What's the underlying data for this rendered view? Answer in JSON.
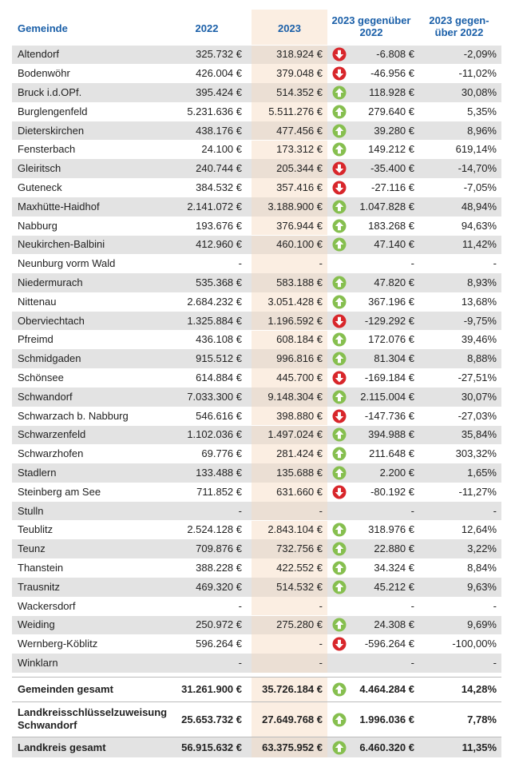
{
  "header": [
    "Gemeinde",
    "2022",
    "2023",
    "2023 gegenüber\n2022",
    "2023 gegen-\nüber 2022"
  ],
  "rows": [
    [
      "Altendorf",
      "325.732 €",
      "318.924 €",
      "-6.808 €",
      "-2,09%"
    ],
    [
      "Bodenwöhr",
      "426.004 €",
      "379.048 €",
      "-46.956 €",
      "-11,02%"
    ],
    [
      "Bruck i.d.OPf.",
      "395.424 €",
      "514.352 €",
      "118.928 €",
      "30,08%"
    ],
    [
      "Burglengenfeld",
      "5.231.636 €",
      "5.511.276 €",
      "279.640 €",
      "5,35%"
    ],
    [
      "Dieterskirchen",
      "438.176 €",
      "477.456 €",
      "39.280 €",
      "8,96%"
    ],
    [
      "Fensterbach",
      "24.100 €",
      "173.312 €",
      "149.212 €",
      "619,14%"
    ],
    [
      "Gleiritsch",
      "240.744 €",
      "205.344 €",
      "-35.400 €",
      "-14,70%"
    ],
    [
      "Guteneck",
      "384.532 €",
      "357.416 €",
      "-27.116 €",
      "-7,05%"
    ],
    [
      "Maxhütte-Haidhof",
      "2.141.072 €",
      "3.188.900 €",
      "1.047.828 €",
      "48,94%"
    ],
    [
      "Nabburg",
      "193.676 €",
      "376.944 €",
      "183.268 €",
      "94,63%"
    ],
    [
      "Neukirchen-Balbini",
      "412.960 €",
      "460.100 €",
      "47.140 €",
      "11,42%"
    ],
    [
      "Neunburg vorm Wald",
      "-",
      "-",
      "-",
      "-"
    ],
    [
      "Niedermurach",
      "535.368 €",
      "583.188 €",
      "47.820 €",
      "8,93%"
    ],
    [
      "Nittenau",
      "2.684.232 €",
      "3.051.428 €",
      "367.196 €",
      "13,68%"
    ],
    [
      "Oberviechtach",
      "1.325.884 €",
      "1.196.592 €",
      "-129.292 €",
      "-9,75%"
    ],
    [
      "Pfreimd",
      "436.108 €",
      "608.184 €",
      "172.076 €",
      "39,46%"
    ],
    [
      "Schmidgaden",
      "915.512 €",
      "996.816 €",
      "81.304 €",
      "8,88%"
    ],
    [
      "Schönsee",
      "614.884 €",
      "445.700 €",
      "-169.184 €",
      "-27,51%"
    ],
    [
      "Schwandorf",
      "7.033.300 €",
      "9.148.304 €",
      "2.115.004 €",
      "30,07%"
    ],
    [
      "Schwarzach b. Nabburg",
      "546.616 €",
      "398.880 €",
      "-147.736 €",
      "-27,03%"
    ],
    [
      "Schwarzenfeld",
      "1.102.036 €",
      "1.497.024 €",
      "394.988 €",
      "35,84%"
    ],
    [
      "Schwarzhofen",
      "69.776 €",
      "281.424 €",
      "211.648 €",
      "303,32%"
    ],
    [
      "Stadlern",
      "133.488 €",
      "135.688 €",
      "2.200 €",
      "1,65%"
    ],
    [
      "Steinberg am See",
      "711.852 €",
      "631.660 €",
      "-80.192 €",
      "-11,27%"
    ],
    [
      "Stulln",
      "-",
      "-",
      "-",
      "-"
    ],
    [
      "Teublitz",
      "2.524.128 €",
      "2.843.104 €",
      "318.976 €",
      "12,64%"
    ],
    [
      "Teunz",
      "709.876 €",
      "732.756 €",
      "22.880 €",
      "3,22%"
    ],
    [
      "Thanstein",
      "388.228 €",
      "422.552 €",
      "34.324 €",
      "8,84%"
    ],
    [
      "Trausnitz",
      "469.320 €",
      "514.532 €",
      "45.212 €",
      "9,63%"
    ],
    [
      "Wackersdorf",
      "-",
      "-",
      "-",
      "-"
    ],
    [
      "Weiding",
      "250.972 €",
      "275.280 €",
      "24.308 €",
      "9,69%"
    ],
    [
      "Wernberg-Köblitz",
      "596.264 €",
      "-",
      "-596.264 €",
      "-100,00%"
    ],
    [
      "Winklarn",
      "-",
      "-",
      "-",
      "-"
    ]
  ],
  "totals": [
    [
      "Gemeinden gesamt",
      "31.261.900 €",
      "35.726.184 €",
      "4.464.284 €",
      "14,28%"
    ],
    [
      "Landkreisschlüsselzuweisung Schwandorf",
      "25.653.732 €",
      "27.649.768 €",
      "1.996.036 €",
      "7,78%"
    ],
    [
      "Landkreis gesamt",
      "56.915.632 €",
      "63.375.952 €",
      "6.460.320 €",
      "11,35%"
    ]
  ]
}
